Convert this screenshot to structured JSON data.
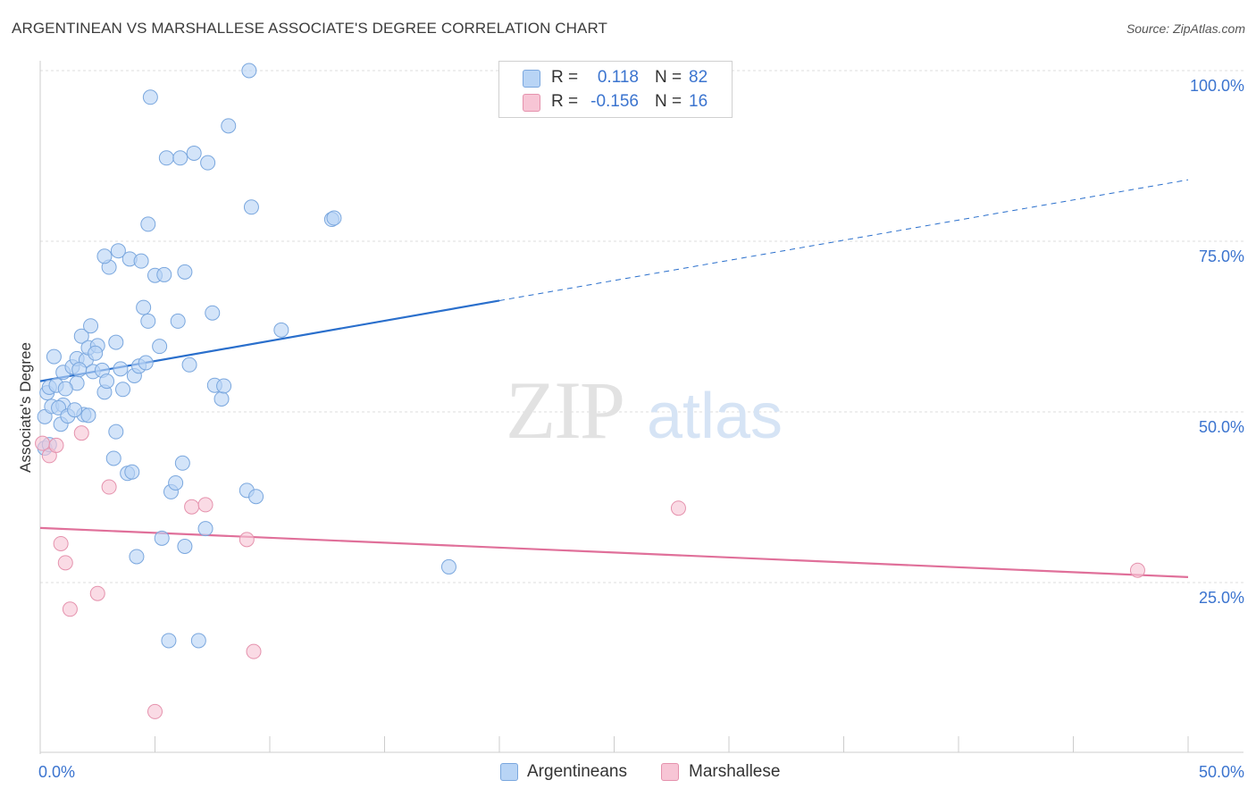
{
  "title": "ARGENTINEAN VS MARSHALLESE ASSOCIATE'S DEGREE CORRELATION CHART",
  "source": "Source: ZipAtlas.com",
  "watermark": {
    "zip": "ZIP",
    "atlas": "atlas"
  },
  "colors": {
    "blue_fill": "#b8d4f5",
    "blue_stroke": "#7aa7de",
    "blue_line": "#2a6fcc",
    "pink_fill": "#f7c5d5",
    "pink_stroke": "#e592ad",
    "pink_line": "#e0709a",
    "value_text": "#3b74cf",
    "grid": "#dddddd"
  },
  "legend": {
    "rows": [
      {
        "r_label": "R =",
        "r_value": "0.118",
        "n_label": "N =",
        "n_value": "82"
      },
      {
        "r_label": "R =",
        "r_value": "-0.156",
        "n_label": "N =",
        "n_value": "16"
      }
    ]
  },
  "bottom_legend": {
    "argentineans": "Argentineans",
    "marshallese": "Marshallese"
  },
  "chart_data": {
    "type": "scatter",
    "title": "ARGENTINEAN VS MARSHALLESE ASSOCIATE'S DEGREE CORRELATION CHART",
    "xlabel": "",
    "ylabel": "Associate's Degree",
    "xlim": [
      0,
      50
    ],
    "ylim": [
      0,
      103
    ],
    "x_tick_labels": [
      "0.0%",
      "50.0%"
    ],
    "y_ticks": [
      25,
      50,
      75,
      100
    ],
    "y_tick_labels": [
      "25.0%",
      "50.0%",
      "75.0%",
      "100.0%"
    ],
    "grid": true,
    "series": [
      {
        "name": "Argentineans",
        "r": 0.118,
        "n": 82,
        "trend": {
          "x0": 0,
          "y0": 54.5,
          "x1": 20,
          "y1": 66.3,
          "dash_to_x": 50,
          "dash_to_y": 84
        },
        "points": [
          [
            0.2,
            49.3
          ],
          [
            0.3,
            52.8
          ],
          [
            0.5,
            50.8
          ],
          [
            0.4,
            53.6
          ],
          [
            0.7,
            53.9
          ],
          [
            0.6,
            58.1
          ],
          [
            1.0,
            55.8
          ],
          [
            1.0,
            51.0
          ],
          [
            0.9,
            48.2
          ],
          [
            0.8,
            50.6
          ],
          [
            1.2,
            49.4
          ],
          [
            1.4,
            56.6
          ],
          [
            1.6,
            57.8
          ],
          [
            1.6,
            54.2
          ],
          [
            1.8,
            61.1
          ],
          [
            2.0,
            57.6
          ],
          [
            2.1,
            59.4
          ],
          [
            1.9,
            49.6
          ],
          [
            2.1,
            49.5
          ],
          [
            2.2,
            62.6
          ],
          [
            2.3,
            55.9
          ],
          [
            2.5,
            59.7
          ],
          [
            2.7,
            56.1
          ],
          [
            2.8,
            52.9
          ],
          [
            2.9,
            54.5
          ],
          [
            3.0,
            71.2
          ],
          [
            2.8,
            72.8
          ],
          [
            3.2,
            43.2
          ],
          [
            3.3,
            60.2
          ],
          [
            3.3,
            47.1
          ],
          [
            3.4,
            73.6
          ],
          [
            3.5,
            56.3
          ],
          [
            3.6,
            53.3
          ],
          [
            3.8,
            41.0
          ],
          [
            3.9,
            72.4
          ],
          [
            4.0,
            41.2
          ],
          [
            4.1,
            55.3
          ],
          [
            4.2,
            28.8
          ],
          [
            4.3,
            56.7
          ],
          [
            4.4,
            72.1
          ],
          [
            4.5,
            65.3
          ],
          [
            4.6,
            57.2
          ],
          [
            4.7,
            63.3
          ],
          [
            4.8,
            96.1
          ],
          [
            4.7,
            77.5
          ],
          [
            5.0,
            70.0
          ],
          [
            5.2,
            59.6
          ],
          [
            5.3,
            31.5
          ],
          [
            5.4,
            70.1
          ],
          [
            5.5,
            87.2
          ],
          [
            5.6,
            16.5
          ],
          [
            5.7,
            38.3
          ],
          [
            5.9,
            39.6
          ],
          [
            6.0,
            63.3
          ],
          [
            6.1,
            87.2
          ],
          [
            6.2,
            42.5
          ],
          [
            6.3,
            70.5
          ],
          [
            6.3,
            30.3
          ],
          [
            6.5,
            56.9
          ],
          [
            6.7,
            87.9
          ],
          [
            6.9,
            16.5
          ],
          [
            7.2,
            32.9
          ],
          [
            7.3,
            86.5
          ],
          [
            7.5,
            64.5
          ],
          [
            7.6,
            53.9
          ],
          [
            7.9,
            51.9
          ],
          [
            8.0,
            53.8
          ],
          [
            8.2,
            91.9
          ],
          [
            9.0,
            38.5
          ],
          [
            9.2,
            80.0
          ],
          [
            9.4,
            37.6
          ],
          [
            9.1,
            100.0
          ],
          [
            10.5,
            62.0
          ],
          [
            12.7,
            78.2
          ],
          [
            12.8,
            78.4
          ],
          [
            17.8,
            27.3
          ],
          [
            0.2,
            44.7
          ],
          [
            0.4,
            45.2
          ],
          [
            1.1,
            53.4
          ],
          [
            1.5,
            50.3
          ],
          [
            1.7,
            56.2
          ],
          [
            2.4,
            58.6
          ]
        ]
      },
      {
        "name": "Marshallese",
        "r": -0.156,
        "n": 16,
        "trend": {
          "x0": 0,
          "y0": 33.0,
          "x1": 50,
          "y1": 25.8
        },
        "points": [
          [
            0.1,
            45.4
          ],
          [
            0.4,
            43.6
          ],
          [
            0.7,
            45.1
          ],
          [
            0.9,
            30.7
          ],
          [
            1.1,
            27.9
          ],
          [
            1.3,
            21.1
          ],
          [
            1.8,
            46.9
          ],
          [
            2.5,
            23.4
          ],
          [
            3.0,
            39.0
          ],
          [
            5.0,
            6.1
          ],
          [
            6.6,
            36.1
          ],
          [
            7.2,
            36.4
          ],
          [
            9.0,
            31.3
          ],
          [
            9.3,
            14.9
          ],
          [
            27.8,
            35.9
          ],
          [
            47.8,
            26.8
          ]
        ]
      }
    ]
  }
}
